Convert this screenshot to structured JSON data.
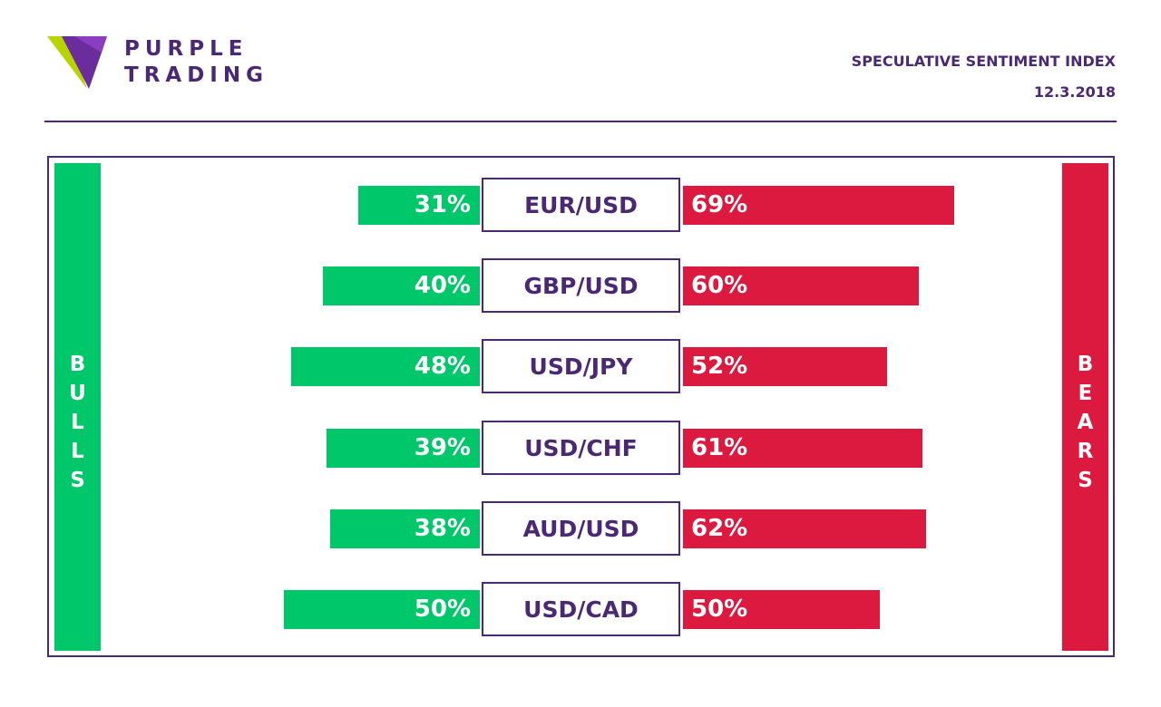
{
  "brand": {
    "line1": "PURPLE",
    "line2": "TRADING"
  },
  "header": {
    "title": "SPECULATIVE SENTIMENT INDEX",
    "date": "12.3.2018"
  },
  "colors": {
    "bull": "#00c86a",
    "bear": "#dc1a3f",
    "accent": "#4b2874"
  },
  "sides": {
    "bulls": "BULLS",
    "bears": "BEARS"
  },
  "chart_data": {
    "type": "bar",
    "orientation": "horizontal-diverging",
    "categories": [
      "EUR/USD",
      "GBP/USD",
      "USD/JPY",
      "USD/CHF",
      "AUD/USD",
      "USD/CAD"
    ],
    "series": [
      {
        "name": "BULLS",
        "values": [
          31,
          40,
          48,
          39,
          38,
          50
        ]
      },
      {
        "name": "BEARS",
        "values": [
          69,
          60,
          52,
          61,
          62,
          50
        ]
      }
    ],
    "labels": {
      "bulls": [
        "31%",
        "40%",
        "48%",
        "39%",
        "38%",
        "50%"
      ],
      "bears": [
        "69%",
        "60%",
        "52%",
        "61%",
        "62%",
        "50%"
      ]
    },
    "xlim": [
      0,
      100
    ],
    "grid": false
  }
}
